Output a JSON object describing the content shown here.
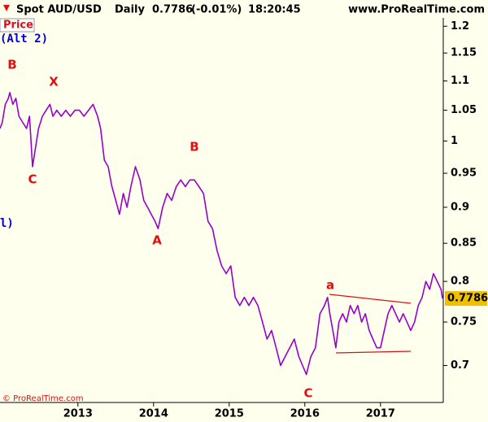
{
  "chart_data": {
    "type": "line",
    "header": {
      "symbol": "Spot AUD/USD",
      "period": "Daily",
      "price": "0.7786",
      "change": "(-0.01%)",
      "time": "18:20:45",
      "site": "www.ProRealTime.com"
    },
    "panel_label": "Price",
    "notes": [
      "(Alt 2)",
      "l)",
      "© ProRealTime.com"
    ],
    "annotations": [
      "B",
      "X",
      "C",
      "B",
      "A",
      "C",
      "a"
    ],
    "last_value": 0.7786,
    "log_scale": true,
    "x": [
      2011.97,
      2012.0,
      2012.04,
      2012.08,
      2012.1,
      2012.14,
      2012.18,
      2012.22,
      2012.27,
      2012.32,
      2012.36,
      2012.4,
      2012.44,
      2012.48,
      2012.53,
      2012.58,
      2012.63,
      2012.67,
      2012.72,
      2012.78,
      2012.84,
      2012.9,
      2012.96,
      2013.02,
      2013.08,
      2013.14,
      2013.2,
      2013.26,
      2013.3,
      2013.35,
      2013.4,
      2013.45,
      2013.5,
      2013.55,
      2013.6,
      2013.65,
      2013.7,
      2013.76,
      2013.82,
      2013.87,
      2013.92,
      2013.97,
      2014.02,
      2014.06,
      2014.12,
      2014.18,
      2014.24,
      2014.3,
      2014.36,
      2014.42,
      2014.48,
      2014.54,
      2014.6,
      2014.66,
      2014.72,
      2014.78,
      2014.84,
      2014.9,
      2014.96,
      2015.02,
      2015.08,
      2015.14,
      2015.2,
      2015.26,
      2015.32,
      2015.38,
      2015.44,
      2015.5,
      2015.56,
      2015.62,
      2015.68,
      2015.74,
      2015.8,
      2015.86,
      2015.92,
      2015.97,
      2016.02,
      2016.08,
      2016.14,
      2016.2,
      2016.26,
      2016.3,
      2016.33,
      2016.37,
      2016.41,
      2016.45,
      2016.5,
      2016.55,
      2016.6,
      2016.65,
      2016.7,
      2016.75,
      2016.8,
      2016.85,
      2016.9,
      2016.95,
      2017.0,
      2017.05,
      2017.1,
      2017.15,
      2017.2,
      2017.25,
      2017.3,
      2017.35,
      2017.4,
      2017.45,
      2017.5,
      2017.55,
      2017.6,
      2017.65,
      2017.7,
      2017.75,
      2017.8,
      2017.82
    ],
    "series": [
      {
        "name": "AUD/USD",
        "color": "#9900cc",
        "values": [
          1.02,
          1.03,
          1.06,
          1.07,
          1.08,
          1.06,
          1.07,
          1.04,
          1.03,
          1.02,
          1.04,
          0.96,
          0.99,
          1.02,
          1.04,
          1.05,
          1.06,
          1.04,
          1.05,
          1.04,
          1.05,
          1.04,
          1.05,
          1.05,
          1.04,
          1.05,
          1.06,
          1.04,
          1.02,
          0.97,
          0.96,
          0.93,
          0.91,
          0.89,
          0.92,
          0.9,
          0.93,
          0.96,
          0.94,
          0.91,
          0.9,
          0.89,
          0.88,
          0.87,
          0.9,
          0.92,
          0.91,
          0.93,
          0.94,
          0.93,
          0.94,
          0.94,
          0.93,
          0.92,
          0.88,
          0.87,
          0.84,
          0.82,
          0.81,
          0.82,
          0.78,
          0.77,
          0.78,
          0.77,
          0.78,
          0.77,
          0.75,
          0.73,
          0.74,
          0.72,
          0.7,
          0.71,
          0.72,
          0.73,
          0.71,
          0.7,
          0.69,
          0.71,
          0.72,
          0.76,
          0.77,
          0.78,
          0.76,
          0.74,
          0.72,
          0.75,
          0.76,
          0.75,
          0.77,
          0.76,
          0.77,
          0.75,
          0.76,
          0.74,
          0.73,
          0.72,
          0.72,
          0.74,
          0.76,
          0.77,
          0.76,
          0.75,
          0.76,
          0.75,
          0.74,
          0.75,
          0.77,
          0.78,
          0.8,
          0.79,
          0.81,
          0.8,
          0.79,
          0.7786
        ]
      }
    ],
    "xlim": [
      2011.97,
      2017.83
    ],
    "xticks": [
      2013,
      2014,
      2015,
      2016,
      2017
    ],
    "ylim": [
      0.66,
      1.216
    ],
    "yticks": [
      1.2,
      1.15,
      1.1,
      1.05,
      1,
      0.95,
      0.9,
      0.85,
      0.8,
      0.75,
      0.7
    ]
  }
}
